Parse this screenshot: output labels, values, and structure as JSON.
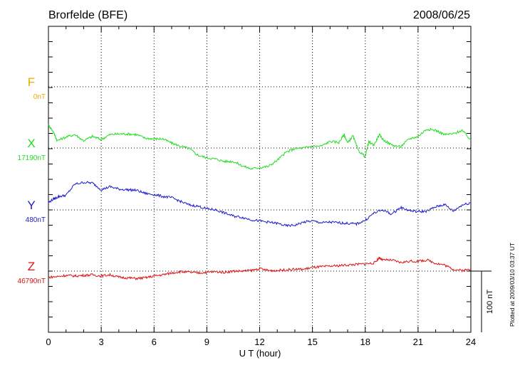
{
  "header": {
    "station": "Brorfelde (BFE)",
    "date": "2008/06/25"
  },
  "footer_note": "Plotted at 2009/03/10 03:37 UT",
  "chart_data": {
    "type": "line",
    "xlabel": "U T (hour)",
    "xlim": [
      0,
      24
    ],
    "xticks": [
      0,
      3,
      6,
      9,
      12,
      15,
      18,
      21,
      24
    ],
    "xtick_labels": [
      "0",
      "3",
      "6",
      "9",
      "12",
      "15",
      "18",
      "21",
      "24"
    ],
    "grid": true,
    "scale_bar": {
      "label": "100 nT",
      "value_nT": 100
    },
    "series": [
      {
        "name": "F",
        "baseline_label": "0nT",
        "color": "#f0a800",
        "values": []
      },
      {
        "name": "X",
        "baseline_label": "17190nT",
        "color": "#22dd22",
        "x": [
          0,
          0.25,
          0.5,
          1,
          1.5,
          2,
          2.5,
          3,
          3.5,
          4,
          4.5,
          5,
          5.5,
          6,
          6.5,
          7,
          7.5,
          8,
          8.5,
          9,
          9.5,
          10,
          10.5,
          11,
          11.5,
          12,
          12.5,
          13,
          13.5,
          14,
          14.5,
          15,
          15.5,
          16,
          16.5,
          16.8,
          17,
          17.3,
          17.6,
          18,
          18.2,
          18.5,
          18.8,
          19,
          19.5,
          20,
          20.5,
          21,
          21.5,
          22,
          22.5,
          23,
          23.5,
          24
        ],
        "values": [
          38,
          28,
          12,
          18,
          22,
          12,
          19,
          14,
          22,
          23,
          23,
          22,
          16,
          15,
          15,
          8,
          3,
          -1,
          -12,
          -16,
          -18,
          -22,
          -22,
          -29,
          -34,
          -32,
          -30,
          -20,
          -7,
          -1,
          0,
          3,
          3,
          11,
          9,
          22,
          8,
          20,
          -4,
          -14,
          10,
          5,
          22,
          14,
          5,
          2,
          15,
          19,
          31,
          29,
          22,
          23,
          29,
          13
        ]
      },
      {
        "name": "Y",
        "baseline_label": "480nT",
        "color": "#1c1ccc",
        "x": [
          0,
          0.3,
          0.6,
          1,
          1.5,
          2,
          2.5,
          3,
          3.5,
          4,
          4.5,
          5,
          5.5,
          6,
          6.5,
          7,
          7.5,
          8,
          8.5,
          9,
          9.5,
          10,
          10.5,
          11,
          11.5,
          12,
          12.5,
          13,
          13.5,
          14,
          14.5,
          15,
          15.5,
          16,
          16.5,
          17,
          17.5,
          18,
          18.5,
          19,
          19.5,
          20,
          20.5,
          21,
          21.5,
          22,
          22.5,
          23,
          23.5,
          24
        ],
        "values": [
          12,
          18,
          22,
          24,
          42,
          45,
          44,
          33,
          38,
          34,
          33,
          32,
          27,
          25,
          22,
          20,
          14,
          8,
          6,
          2,
          0,
          -5,
          -10,
          -12,
          -16,
          -18,
          -20,
          -22,
          -26,
          -25,
          -20,
          -18,
          -21,
          -20,
          -21,
          -22,
          -23,
          -17,
          -5,
          0,
          -7,
          4,
          -1,
          -3,
          -2,
          5,
          9,
          -2,
          8,
          12
        ]
      },
      {
        "name": "Z",
        "baseline_label": "46790nT",
        "color": "#dd1111",
        "x": [
          0,
          0.5,
          1,
          1.5,
          2,
          2.5,
          3,
          3.5,
          4,
          4.5,
          5,
          5.5,
          6,
          6.5,
          7,
          7.5,
          8,
          8.5,
          9,
          9.5,
          10,
          10.5,
          11,
          11.5,
          12,
          12.5,
          13,
          13.5,
          14,
          14.5,
          15,
          15.5,
          16,
          16.5,
          17,
          17.5,
          18,
          18.5,
          18.8,
          19,
          19.5,
          20,
          20.5,
          21,
          21.5,
          22,
          22.5,
          23,
          23.5,
          24
        ],
        "values": [
          -10,
          -9,
          -7,
          -8,
          -7,
          -6,
          -8,
          -6,
          -10,
          -11,
          -12,
          -11,
          -8,
          -6,
          -3,
          -1,
          -2,
          -3,
          -2,
          -1,
          -2,
          0,
          0,
          1,
          4,
          1,
          1,
          2,
          3,
          3,
          6,
          7,
          8,
          9,
          10,
          11,
          12,
          13,
          22,
          18,
          18,
          14,
          16,
          16,
          18,
          13,
          10,
          3,
          1,
          3
        ]
      }
    ]
  }
}
